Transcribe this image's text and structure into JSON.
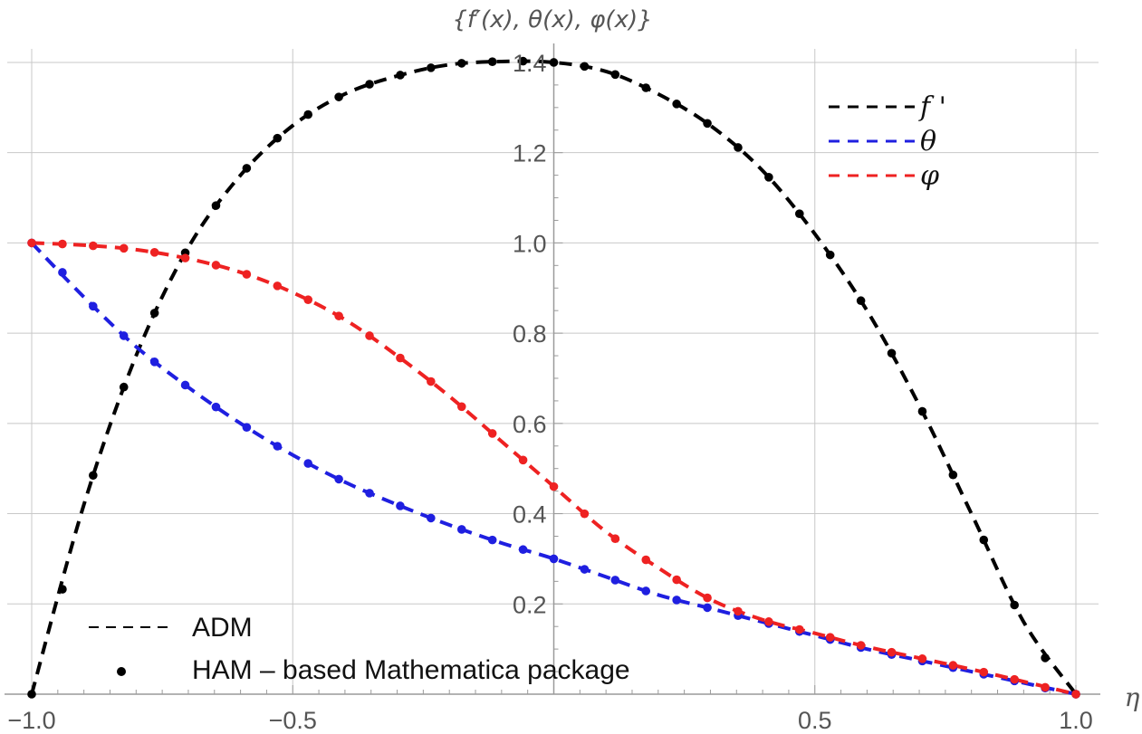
{
  "chart_data": {
    "type": "line",
    "title": "{f′(x), θ(x), φ(x)}",
    "xlabel": "η",
    "ylabel": "",
    "xlim": [
      -1.0,
      1.0
    ],
    "ylim": [
      0.0,
      1.43
    ],
    "grid": true,
    "x_ticks": [
      -1.0,
      -0.5,
      0.5,
      1.0
    ],
    "x_tick_labels": [
      "−1.0",
      "−0.5",
      "0.5",
      "1.0"
    ],
    "y_ticks": [
      0.2,
      0.4,
      0.6,
      0.8,
      1.0,
      1.2,
      1.4
    ],
    "y_tick_labels": [
      "0.2",
      "0.4",
      "0.6",
      "0.8",
      "1.0",
      "1.2",
      "1.4"
    ],
    "x_grid": [
      -1.0,
      -0.5,
      0.5,
      1.0
    ],
    "y_grid": [
      0.2,
      0.4,
      0.6,
      0.8,
      1.0,
      1.2,
      1.4
    ],
    "x": [
      -1.0,
      -0.9,
      -0.8,
      -0.7,
      -0.6,
      -0.5,
      -0.4,
      -0.3,
      -0.2,
      -0.1,
      0.0,
      0.1,
      0.2,
      0.3,
      0.4,
      0.5,
      0.6,
      0.7,
      0.8,
      0.9,
      1.0
    ],
    "series": [
      {
        "name": "f'",
        "legend": "f '",
        "color": "#000000",
        "values": [
          0.0,
          0.42,
          0.75,
          0.99,
          1.15,
          1.26,
          1.33,
          1.37,
          1.395,
          1.402,
          1.4,
          1.38,
          1.33,
          1.26,
          1.16,
          1.02,
          0.85,
          0.64,
          0.4,
          0.16,
          0.0
        ]
      },
      {
        "name": "theta",
        "legend": "θ",
        "color": "#1f1fe0",
        "values": [
          1.0,
          0.88,
          0.77,
          0.68,
          0.6,
          0.53,
          0.47,
          0.42,
          0.375,
          0.335,
          0.3,
          0.26,
          0.22,
          0.19,
          0.16,
          0.13,
          0.1,
          0.075,
          0.05,
          0.025,
          0.0
        ]
      },
      {
        "name": "phi",
        "legend": "φ",
        "color": "#ee2222",
        "values": [
          1.0,
          0.995,
          0.985,
          0.965,
          0.935,
          0.89,
          0.83,
          0.75,
          0.66,
          0.56,
          0.46,
          0.36,
          0.28,
          0.21,
          0.165,
          0.135,
          0.105,
          0.08,
          0.055,
          0.028,
          0.0
        ]
      }
    ],
    "legend": {
      "position": "top-right",
      "entries": [
        "f '",
        "θ",
        "φ"
      ]
    },
    "method_legend": {
      "position": "bottom-left",
      "entries": [
        {
          "style": "dashed",
          "label": "ADM"
        },
        {
          "style": "dots",
          "label": "HAM – based Mathematica package"
        }
      ]
    }
  }
}
